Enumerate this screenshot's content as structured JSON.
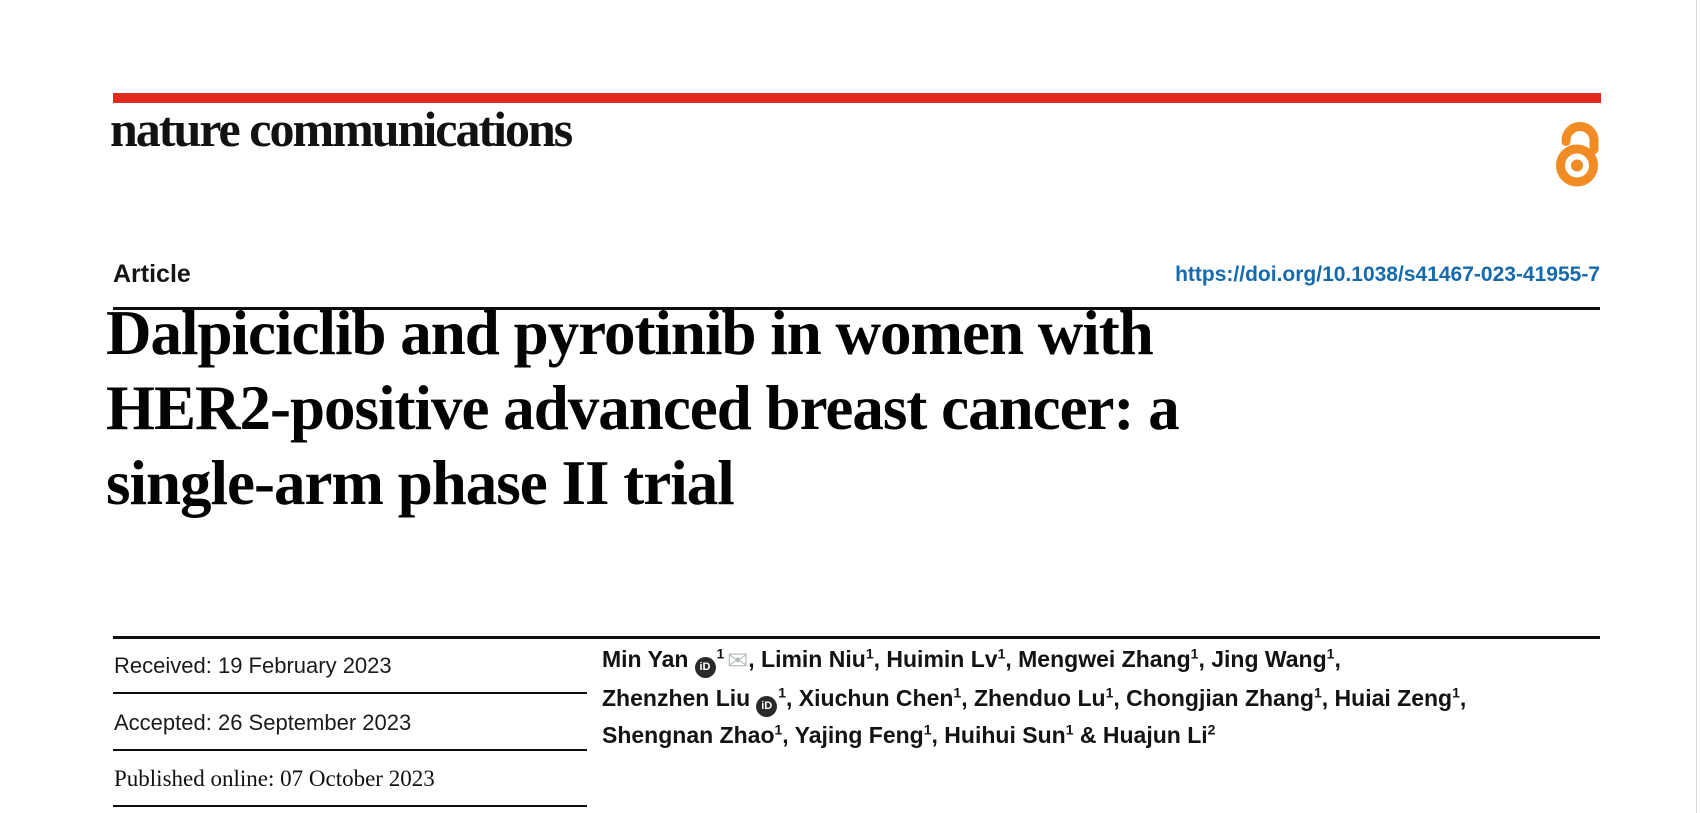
{
  "brand": {
    "journal_name": "nature communications",
    "accent_red": "#e22b1e",
    "open_access_orange": "#f08c23",
    "open_access_icon": "open-access-padlock"
  },
  "header": {
    "article_type": "Article",
    "doi_link": "https://doi.org/10.1038/s41467-023-41955-7",
    "doi_color": "#1569ad"
  },
  "title": {
    "line1": "Dalpiciclib and pyrotinib in women with",
    "line2": "HER2-positive advanced breast cancer: a",
    "line3": "single-arm phase II trial"
  },
  "dates": {
    "received": {
      "label": "Received:",
      "value": "19 February 2023"
    },
    "accepted": {
      "label": "Accepted:",
      "value": "26 September 2023"
    },
    "published": {
      "label": "Published online:",
      "value": "07 October 2023"
    }
  },
  "icons": {
    "orcid_label": "iD",
    "envelope_glyph": "✉"
  },
  "authors": {
    "lines": [
      {
        "segments": [
          {
            "text": "Min Yan"
          },
          {
            "icon": "orcid"
          },
          {
            "sup": "1"
          },
          {
            "icon": "envelope"
          },
          {
            "text": ", Limin Niu"
          },
          {
            "sup": "1"
          },
          {
            "text": ", Huimin Lv"
          },
          {
            "sup": "1"
          },
          {
            "text": ", Mengwei Zhang"
          },
          {
            "sup": "1"
          },
          {
            "text": ", Jing Wang"
          },
          {
            "sup": "1"
          },
          {
            "text": ","
          }
        ]
      },
      {
        "segments": [
          {
            "text": "Zhenzhen Liu"
          },
          {
            "icon": "orcid"
          },
          {
            "sup": "1"
          },
          {
            "text": ", Xiuchun Chen"
          },
          {
            "sup": "1"
          },
          {
            "text": ", Zhenduo Lu"
          },
          {
            "sup": "1"
          },
          {
            "text": ", Chongjian Zhang"
          },
          {
            "sup": "1"
          },
          {
            "text": ", Huiai Zeng"
          },
          {
            "sup": "1"
          },
          {
            "text": ","
          }
        ]
      },
      {
        "segments": [
          {
            "text": "Shengnan Zhao"
          },
          {
            "sup": "1"
          },
          {
            "text": ", Yajing Feng"
          },
          {
            "sup": "1"
          },
          {
            "text": ", Huihui Sun"
          },
          {
            "sup": "1"
          },
          {
            "text": " & Huajun Li"
          },
          {
            "sup": "2"
          }
        ]
      }
    ]
  }
}
